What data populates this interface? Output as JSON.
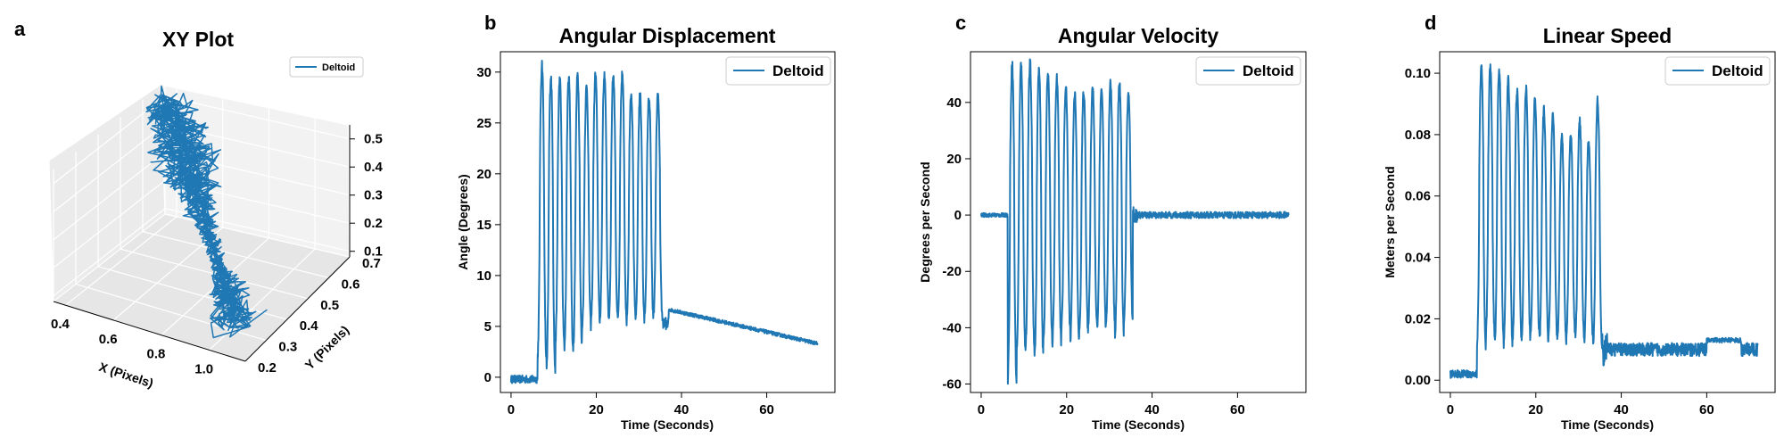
{
  "series_color": "#1f77b4",
  "chart_data": [
    {
      "panel": "a",
      "type": "line",
      "projection": "3d",
      "title": "XY Plot",
      "xlabel": "X (Pixels)",
      "ylabel": "Y (Pixels)",
      "zlabel": "",
      "xlim": [
        0.35,
        1.15
      ],
      "ylim": [
        0.2,
        0.7
      ],
      "zlim": [
        0.08,
        0.55
      ],
      "xticks": [
        "0.4",
        "0.6",
        "0.8",
        "1.0"
      ],
      "yticks": [
        "0.2",
        "0.3",
        "0.4",
        "0.5",
        "0.6",
        "0.7"
      ],
      "zticks": [
        "0.1",
        "0.2",
        "0.3",
        "0.4",
        "0.5"
      ],
      "legend": "top-right",
      "grid": true,
      "series": [
        {
          "name": "Deltoid",
          "trajectory": "dense trace from (0.40, 0.65, 0.52) down to (1.05, 0.30, 0.10)"
        }
      ]
    },
    {
      "panel": "b",
      "type": "line",
      "title": "Angular Displacement",
      "xlabel": "Time (Seconds)",
      "ylabel": "Angle (Degrees)",
      "xlim": [
        -2.5,
        76
      ],
      "ylim": [
        -1.5,
        32
      ],
      "xticks": [
        0,
        20,
        40,
        60
      ],
      "yticks": [
        0,
        5,
        10,
        15,
        20,
        25,
        30
      ],
      "legend": "top-right",
      "grid": false,
      "signal": {
        "start": 0,
        "end": 72,
        "onset": 6.2,
        "offset": 35.5,
        "cycles": 14,
        "pre_level": -0.2,
        "peaks": [
          30.8,
          29.6,
          29.3,
          29.5,
          29.8,
          28.5,
          29.8,
          29.7,
          29.7,
          29.8,
          28.0,
          27.8,
          27.5,
          27.7
        ],
        "troughs": [
          2.0,
          0.6,
          3.5,
          2.8,
          3.0,
          5.0,
          5.5,
          6.0,
          5.8,
          5.5,
          6.0,
          5.5,
          6.0,
          6.0
        ],
        "post_start": 6.8,
        "post_end": 3.3
      },
      "series": [
        {
          "name": "Deltoid"
        }
      ]
    },
    {
      "panel": "c",
      "type": "line",
      "title": "Angular Velocity",
      "xlabel": "Time (Seconds)",
      "ylabel": "Degrees per Second",
      "xlim": [
        -2.5,
        76
      ],
      "ylim": [
        -63,
        58
      ],
      "xticks": [
        0,
        20,
        40,
        60
      ],
      "yticks": [
        -60,
        -40,
        -20,
        0,
        20,
        40
      ],
      "legend": "top-right",
      "grid": false,
      "signal": {
        "start": 0,
        "end": 72,
        "onset": 6.2,
        "offset": 35.5,
        "cycles": 14,
        "pre_level": 0,
        "peaks": [
          53.5,
          53.0,
          53.8,
          51.5,
          50.0,
          48.5,
          45.5,
          43.5,
          44.0,
          45.5,
          45.0,
          47.0,
          47.5,
          42.5
        ],
        "troughs": [
          -58.5,
          -48.0,
          -46.0,
          -50.0,
          -44.0,
          -45.5,
          -40.0,
          -44.0,
          -42.0,
          -38.5,
          -40.0,
          -38.0,
          -42.0,
          -37.0
        ],
        "post_level": 0
      },
      "series": [
        {
          "name": "Deltoid"
        }
      ]
    },
    {
      "panel": "d",
      "type": "line",
      "title": "Linear Speed",
      "xlabel": "Time (Seconds)",
      "ylabel": "Meters per Second",
      "xlim": [
        -2.5,
        76
      ],
      "ylim": [
        -0.004,
        0.107
      ],
      "xticks": [
        0,
        20,
        40,
        60
      ],
      "yticks": [
        "0.00",
        "0.02",
        "0.04",
        "0.06",
        "0.08",
        "0.10"
      ],
      "legend": "top-right",
      "grid": false,
      "signal": {
        "start": 0,
        "end": 72,
        "onset": 6.2,
        "offset": 35.5,
        "cycles": 14,
        "pre_level": 0.002,
        "peaks": [
          0.102,
          0.102,
          0.101,
          0.098,
          0.094,
          0.095,
          0.092,
          0.088,
          0.086,
          0.08,
          0.08,
          0.085,
          0.078,
          0.091
        ],
        "troughs": [
          0.01,
          0.015,
          0.013,
          0.012,
          0.014,
          0.013,
          0.015,
          0.013,
          0.014,
          0.013,
          0.015,
          0.014,
          0.013,
          0.012
        ],
        "post_level": 0.01,
        "post_bump": 0.013
      },
      "series": [
        {
          "name": "Deltoid"
        }
      ]
    }
  ]
}
